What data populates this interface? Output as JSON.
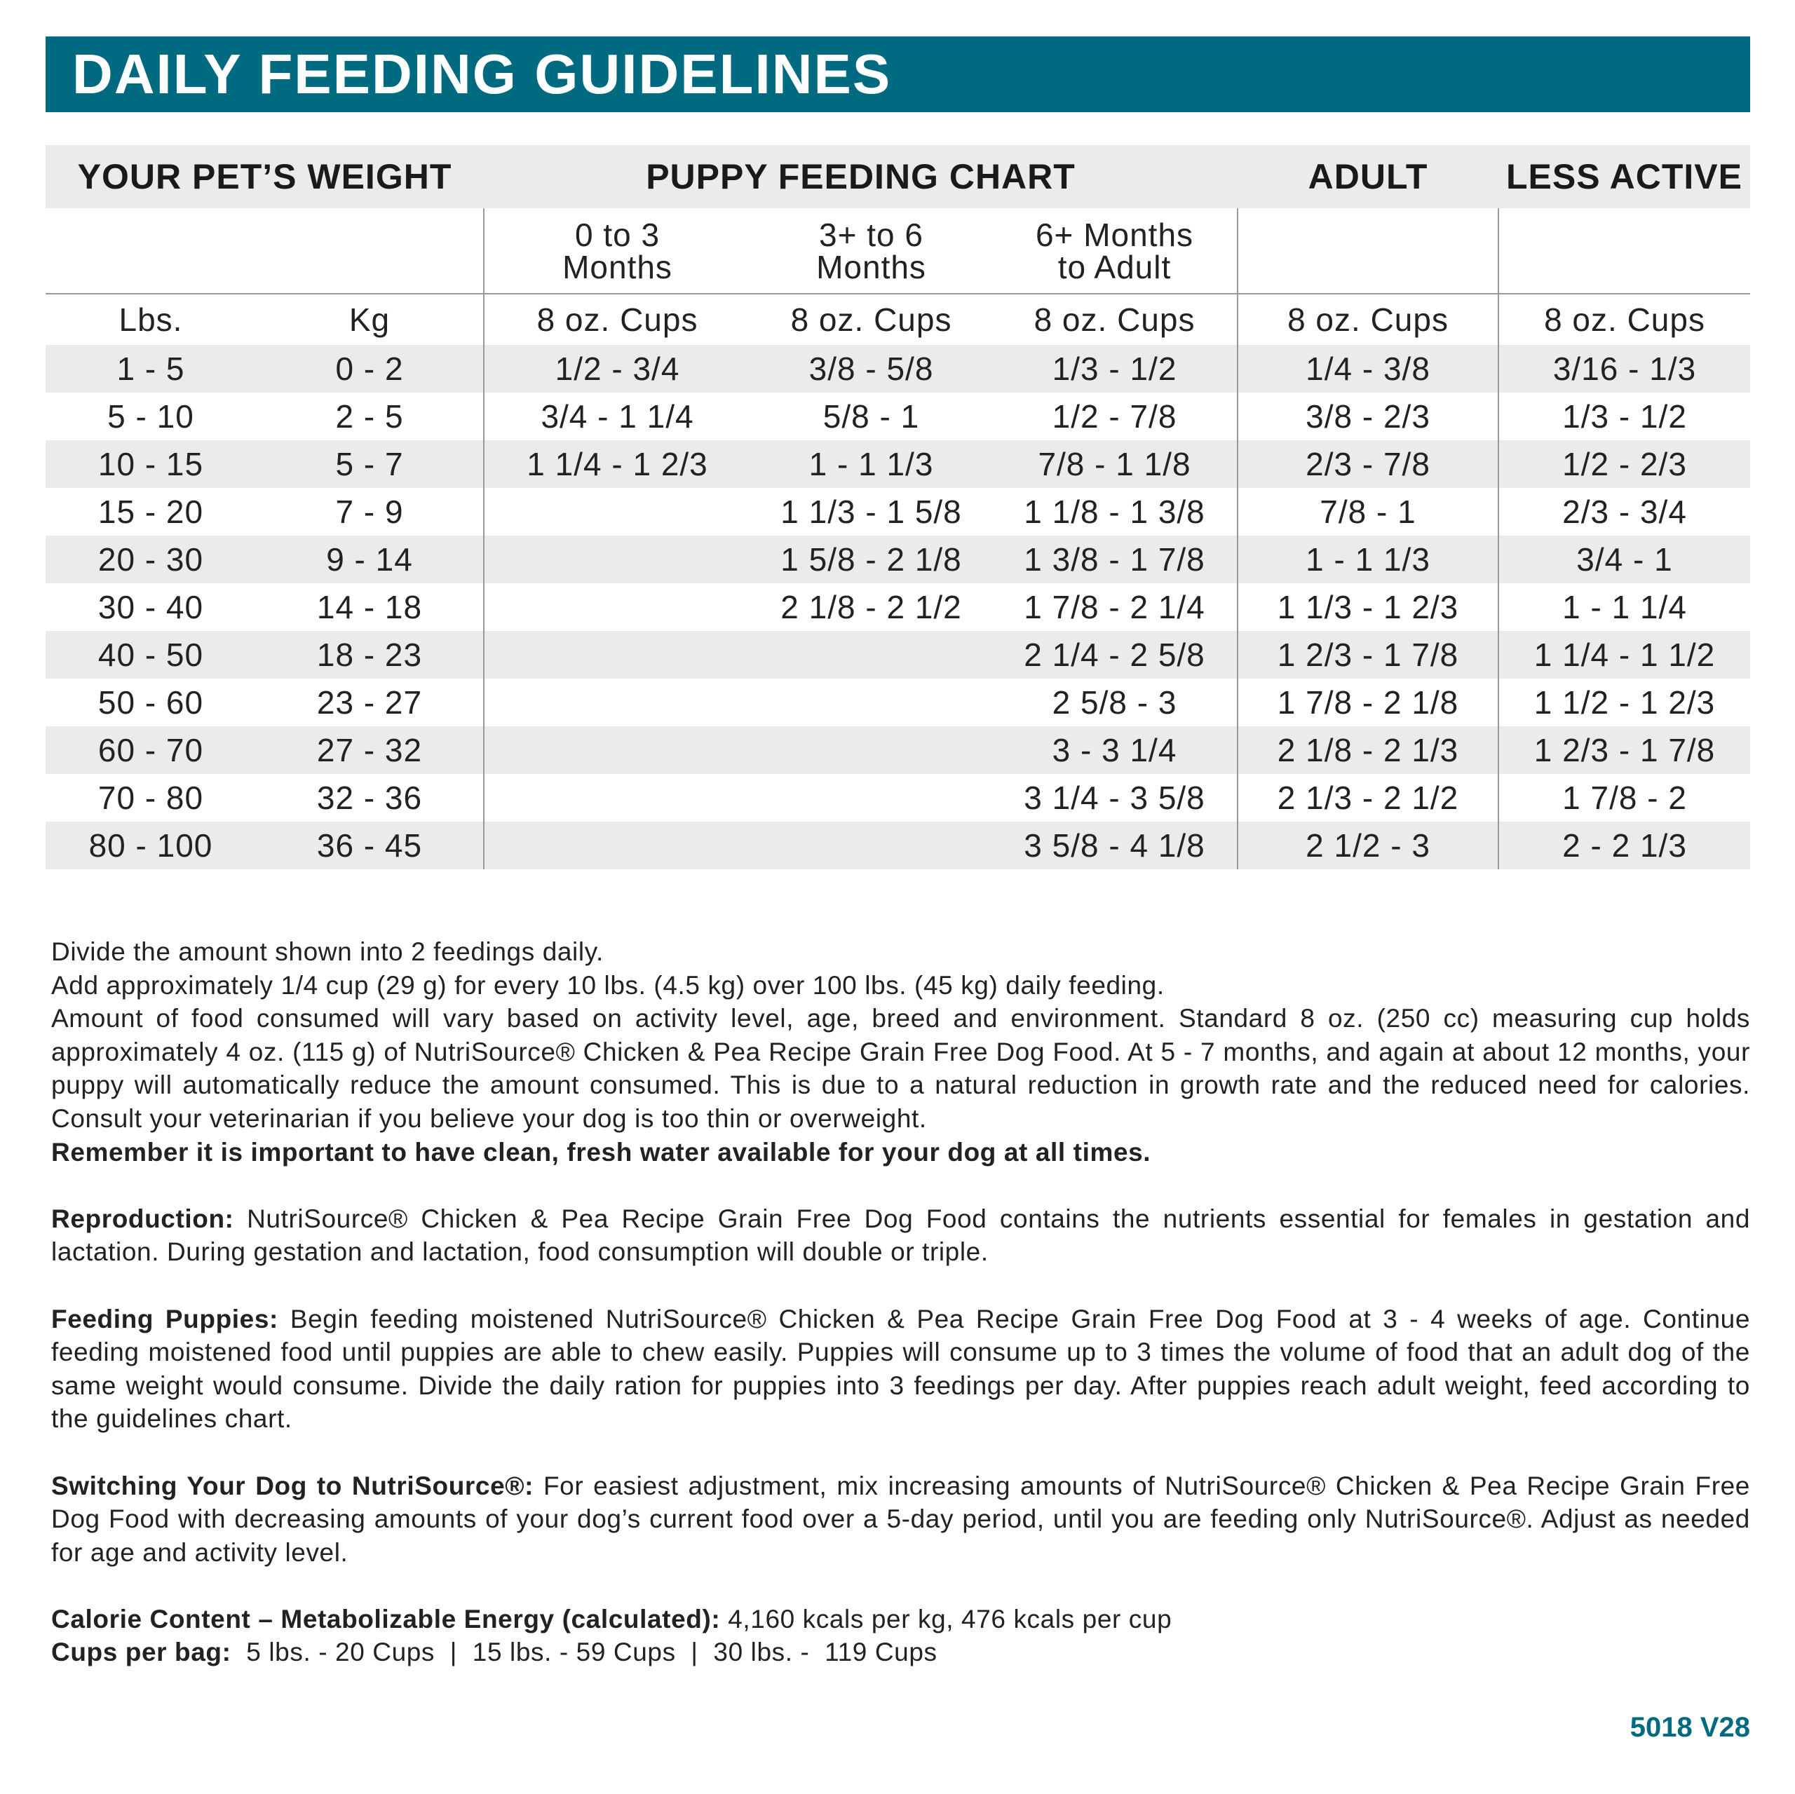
{
  "title": "DAILY FEEDING GUIDELINES",
  "accent_color": "#006a80",
  "table": {
    "headers": {
      "weight": "YOUR PET’S WEIGHT",
      "puppy": "PUPPY FEEDING CHART",
      "adult": "ADULT",
      "less_active": "LESS ACTIVE"
    },
    "sub_headers": {
      "p1": "0 to 3\nMonths",
      "p2": "3+ to 6\nMonths",
      "p3": "6+ Months\nto Adult"
    },
    "units": {
      "lbs": "Lbs.",
      "kg": "Kg",
      "cups": "8 oz. Cups"
    },
    "rows": [
      {
        "lbs": "1 - 5",
        "kg": "0 - 2",
        "p1": "1/2 - 3/4",
        "p2": "3/8 - 5/8",
        "p3": "1/3 - 1/2",
        "adult": "1/4 - 3/8",
        "less": "3/16 - 1/3"
      },
      {
        "lbs": "5 - 10",
        "kg": "2 - 5",
        "p1": "3/4 - 1 1/4",
        "p2": "5/8 - 1",
        "p3": "1/2 - 7/8",
        "adult": "3/8 - 2/3",
        "less": "1/3 - 1/2"
      },
      {
        "lbs": "10 - 15",
        "kg": "5 - 7",
        "p1": "1 1/4 - 1 2/3",
        "p2": "1 - 1 1/3",
        "p3": "7/8 - 1 1/8",
        "adult": "2/3 - 7/8",
        "less": "1/2 - 2/3"
      },
      {
        "lbs": "15 - 20",
        "kg": "7 - 9",
        "p1": "",
        "p2": "1 1/3 - 1 5/8",
        "p3": "1 1/8 - 1 3/8",
        "adult": "7/8 - 1",
        "less": "2/3 - 3/4"
      },
      {
        "lbs": "20 - 30",
        "kg": "9 - 14",
        "p1": "",
        "p2": "1 5/8 - 2 1/8",
        "p3": "1 3/8 - 1 7/8",
        "adult": "1 - 1 1/3",
        "less": "3/4 - 1"
      },
      {
        "lbs": "30 - 40",
        "kg": "14 - 18",
        "p1": "",
        "p2": "2 1/8 - 2 1/2",
        "p3": "1 7/8 - 2 1/4",
        "adult": "1 1/3 - 1 2/3",
        "less": "1 - 1 1/4"
      },
      {
        "lbs": "40 - 50",
        "kg": "18 - 23",
        "p1": "",
        "p2": "",
        "p3": "2 1/4 - 2 5/8",
        "adult": "1 2/3 - 1 7/8",
        "less": "1 1/4 - 1 1/2"
      },
      {
        "lbs": "50 - 60",
        "kg": "23 - 27",
        "p1": "",
        "p2": "",
        "p3": "2 5/8 - 3",
        "adult": "1 7/8 - 2 1/8",
        "less": "1 1/2 - 1 2/3"
      },
      {
        "lbs": "60 - 70",
        "kg": "27 - 32",
        "p1": "",
        "p2": "",
        "p3": "3 - 3 1/4",
        "adult": "2 1/8 - 2 1/3",
        "less": "1 2/3 - 1 7/8"
      },
      {
        "lbs": "70 - 80",
        "kg": "32 - 36",
        "p1": "",
        "p2": "",
        "p3": "3 1/4 - 3 5/8",
        "adult": "2 1/3 - 2 1/2",
        "less": "1 7/8 - 2"
      },
      {
        "lbs": "80 - 100",
        "kg": "36 - 45",
        "p1": "",
        "p2": "",
        "p3": "3 5/8 - 4 1/8",
        "adult": "2 1/2 - 3",
        "less": "2 - 2 1/3"
      }
    ]
  },
  "notes": {
    "p1": "Divide the amount shown into 2 feedings daily.",
    "p2": "Add approximately 1/4 cup (29 g) for every 10 lbs. (4.5 kg) over 100 lbs. (45 kg) daily feeding.",
    "p3": "Amount of food consumed will vary based on activity level, age, breed and environment. Standard 8 oz. (250 cc) measuring cup holds approximately 4 oz. (115 g)  of NutriSource® Chicken & Pea Recipe Grain Free Dog Food. At 5 - 7 months, and again at about 12 months, your puppy will automatically reduce the amount consumed. This is due to a natural reduction in growth rate and the reduced need for calories. Consult your veterinarian if you believe your dog is too thin or overweight.",
    "water": "Remember it is important to have clean, fresh water available for your dog at all times.",
    "reproduction_label": "Reproduction:",
    "reproduction": " NutriSource® Chicken & Pea Recipe Grain Free Dog Food contains the nutrients essential for females in gestation and lactation. During gestation and lactation, food consumption will double or triple.",
    "puppies_label": "Feeding Puppies:",
    "puppies": " Begin feeding moistened NutriSource® Chicken & Pea Recipe Grain Free Dog Food at 3 - 4 weeks of age. Continue feeding moistened food until puppies are able to chew easily. Puppies will consume up to 3 times the volume of food that an adult dog of the same weight would consume. Divide the daily ration for puppies into 3 feedings per day. After puppies reach adult weight, feed according to the guidelines chart.",
    "switching_label": "Switching Your Dog to NutriSource®:",
    "switching": " For easiest adjustment, mix increasing amounts of NutriSource® Chicken & Pea Recipe Grain Free Dog Food with decreasing amounts of your dog’s current food over a 5-day period, until you are feeding only NutriSource®. Adjust as needed for age and activity level.",
    "calorie_label": "Calorie Content – Metabolizable Energy (calculated):",
    "calorie": " 4,160 kcals per kg, 476 kcals per cup",
    "cups_label": "Cups per bag:",
    "cups": "  5 lbs. - 20 Cups  |  15 lbs. - 59 Cups  |  30 lbs. -  119 Cups"
  },
  "code": "5018 V28"
}
